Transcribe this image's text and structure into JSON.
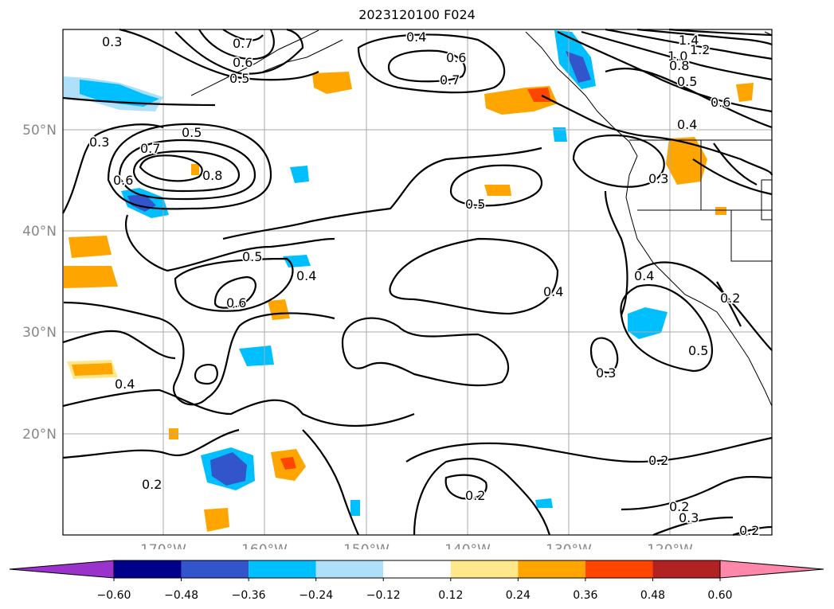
{
  "title": "2023120100 F024",
  "lat_labels": [
    "50°N",
    "40°N",
    "30°N",
    "20°N"
  ],
  "lon_labels": [
    "170°W",
    "160°W",
    "150°W",
    "140°W",
    "130°W",
    "120°W"
  ],
  "contour_labels": [
    "0.3",
    "0.7",
    "0.6",
    "0.5",
    "0.4",
    "0.6",
    "0.7",
    "1.4",
    "1.2",
    "1.0",
    "0.8",
    "0.5",
    "0.6",
    "0.3",
    "0.7",
    "0.5",
    "0.8",
    "0.6",
    "0.4",
    "0.3",
    "0.5",
    "0.5",
    "0.4",
    "0.6",
    "0.4",
    "0.4",
    "0.2",
    "0.4",
    "0.5",
    "0.3",
    "0.2",
    "0.2",
    "0.2",
    "0.2",
    "0.3",
    "0.2"
  ],
  "colorbar": {
    "tick_labels": [
      "−0.60",
      "−0.48",
      "−0.36",
      "−0.24",
      "−0.12",
      "0.12",
      "0.24",
      "0.36",
      "0.48",
      "0.60"
    ],
    "colors": [
      "#9933cc",
      "#00008b",
      "#3355cc",
      "#00bfff",
      "#aee0fa",
      "#ffffff",
      "#ffe88a",
      "#ffa500",
      "#ff4500",
      "#b22222",
      "#ff88aa"
    ]
  },
  "colors": {
    "neg_light": "#aee0fa",
    "neg_mid": "#00bfff",
    "neg_dark": "#3355cc",
    "pos_light": "#ffe88a",
    "pos_mid": "#ffa500",
    "pos_dark": "#ff4500"
  }
}
